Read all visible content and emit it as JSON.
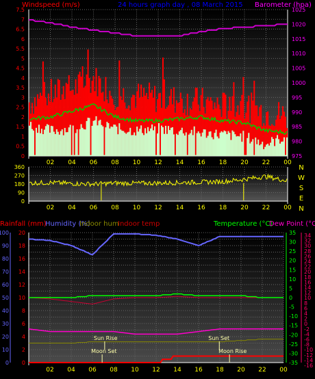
{
  "panel1": {
    "title": "24 hours graph day , 08 March 2015",
    "left_label": "Windspeed (m/s)",
    "right_label": "Barometer (hpa)",
    "left_ticks": [
      "7.5",
      "7",
      "6.5",
      "6",
      "5.5",
      "5",
      "4.5",
      "4",
      "3.5",
      "3",
      "2.5",
      "2",
      "1.5",
      "1",
      "0.5",
      "0"
    ],
    "right_ticks": [
      "1025",
      "1020",
      "1015",
      "1010",
      "1005",
      "1000",
      "995",
      "990",
      "985",
      "980",
      "975"
    ],
    "x_ticks": [
      "02",
      "04",
      "06",
      "08",
      "10",
      "12",
      "14",
      "16",
      "18",
      "20",
      "22",
      "00"
    ]
  },
  "panel2": {
    "left_ticks": [
      "360",
      "270",
      "180",
      "90",
      "0"
    ],
    "compass": [
      "N",
      "W",
      "S",
      "E",
      "N"
    ],
    "x_ticks": [
      "02",
      "04",
      "06",
      "08",
      "10",
      "12",
      "14",
      "16",
      "18",
      "20",
      "22",
      "00"
    ]
  },
  "panel3": {
    "legend": {
      "rainfall": "Rainfall (mm)",
      "humidity": "Humidity (%)",
      "indoor_hum": "Indoor hum",
      "indoor_temp": "Indoor temp",
      "temperature": "Temperature (°C)",
      "dew_point": "Dew Point (°C)"
    },
    "humidity_ticks": [
      "100",
      "90",
      "80",
      "70",
      "60",
      "50",
      "40",
      "30",
      "20",
      "10",
      "0"
    ],
    "rain_ticks": [
      "20",
      "18",
      "16",
      "14",
      "12",
      "10",
      "8",
      "6",
      "4",
      "2",
      "0"
    ],
    "temp_ticks": [
      "35",
      "30",
      "25",
      "20",
      "15",
      "10",
      "5",
      "0",
      "-5",
      "-10",
      "-15",
      "-20",
      "-25",
      "-30",
      "-35"
    ],
    "dew_ticks": [
      "34",
      "32",
      "30",
      "28",
      "26",
      "24",
      "22",
      "20",
      "18",
      "16",
      "14",
      "12",
      "10",
      "8",
      "6",
      "4",
      "2",
      "0",
      "-2",
      "-4",
      "-6",
      "-8",
      "-10",
      "-12",
      "-14",
      "-16"
    ],
    "x_ticks": [
      "02",
      "04",
      "06",
      "08",
      "10",
      "12",
      "14",
      "16",
      "18",
      "20",
      "22",
      "00"
    ],
    "annotations": {
      "sun_rise": "Sun Rise",
      "sun_set": "Sun Set",
      "moon_set": "Moon Set",
      "moon_rise": "Moon Rise"
    }
  },
  "chart_data": [
    {
      "type": "line",
      "title": "24 hours graph day , 08 March 2015",
      "xlabel": "",
      "ylabel": "Windspeed (m/s)",
      "y2label": "Barometer (hpa)",
      "ylim": [
        0,
        7.5
      ],
      "y2lim": [
        975,
        1025
      ],
      "x": [
        "00",
        "02",
        "04",
        "06",
        "08",
        "10",
        "12",
        "14",
        "16",
        "18",
        "20",
        "22",
        "00"
      ],
      "series": [
        {
          "name": "Windspeed (m/s)",
          "color": "#ff0000",
          "values": [
            2.6,
            3.0,
            3.3,
            3.8,
            3.0,
            2.9,
            2.8,
            2.7,
            2.6,
            2.4,
            2.4,
            2.1,
            1.9
          ]
        },
        {
          "name": "Windspeed (m/s)",
          "color": "#ccffcc",
          "values": [
            1.6,
            1.3,
            1.4,
            1.8,
            1.4,
            1.3,
            1.4,
            1.3,
            1.2,
            1.1,
            1.0,
            0.6,
            1.0
          ]
        },
        {
          "name": "Windspeed (m/s)",
          "color": "#00ff00",
          "values": [
            1.9,
            2.0,
            2.3,
            2.6,
            2.0,
            1.8,
            1.8,
            1.9,
            2.0,
            1.8,
            1.7,
            1.3,
            1.2
          ]
        },
        {
          "name": "Barometer (hpa)",
          "color": "#cc00cc",
          "axis": "right",
          "values": [
            1021.5,
            1020.5,
            1019,
            1018,
            1017,
            1016,
            1016,
            1016,
            1017.5,
            1018.5,
            1019,
            1019.5,
            1020
          ]
        }
      ],
      "grid": true
    },
    {
      "type": "scatter",
      "xlabel": "",
      "ylabel": "",
      "ylim": [
        0,
        360
      ],
      "x": [
        "00",
        "02",
        "04",
        "06",
        "08",
        "10",
        "12",
        "14",
        "16",
        "18",
        "20",
        "22",
        "00"
      ],
      "series": [
        {
          "color": "#ffff00",
          "values": [
            190,
            195,
            185,
            180,
            190,
            188,
            190,
            195,
            200,
            205,
            230,
            260,
            215
          ]
        }
      ],
      "grid": true
    },
    {
      "type": "line",
      "xlabel": "",
      "ylabel": "",
      "ylim": [
        0,
        100
      ],
      "x": [
        "00",
        "02",
        "04",
        "06",
        "08",
        "10",
        "12",
        "14",
        "16",
        "18",
        "20",
        "22",
        "00"
      ],
      "series": [
        {
          "name": "Humidity (%)",
          "color": "#6666ff",
          "values": [
            95,
            94,
            90,
            83,
            99,
            99,
            98,
            95,
            90,
            97,
            97,
            97,
            97
          ]
        },
        {
          "name": "Temperature (°C)",
          "color": "#00ff00",
          "axis": "temp",
          "values": [
            0,
            0,
            0,
            1,
            1,
            1,
            1,
            2,
            1,
            1,
            1,
            0,
            0
          ]
        },
        {
          "name": "Dew Point (°C)",
          "color": "#ff0066",
          "axis": "dew",
          "values": [
            -2,
            -3,
            -3,
            -3,
            -3,
            -4,
            -4,
            -4,
            -3,
            -2,
            -2,
            -2,
            -2
          ]
        },
        {
          "name": "Indoor temp",
          "color": "#cc0000",
          "values": [
            50,
            49,
            47,
            45,
            49,
            50,
            50,
            51,
            50,
            50,
            50,
            50,
            50
          ]
        },
        {
          "name": "Rainfall (mm)",
          "color": "#ff0000",
          "axis": "rain",
          "values": [
            0,
            0,
            0,
            0,
            0,
            0,
            0,
            1,
            1,
            1,
            1,
            1,
            1
          ]
        },
        {
          "name": "Indoor hum",
          "color": "#888800",
          "values": [
            15,
            15,
            15,
            16,
            16,
            16,
            16,
            16,
            16,
            16,
            17,
            18,
            18
          ]
        }
      ],
      "grid": true
    }
  ]
}
